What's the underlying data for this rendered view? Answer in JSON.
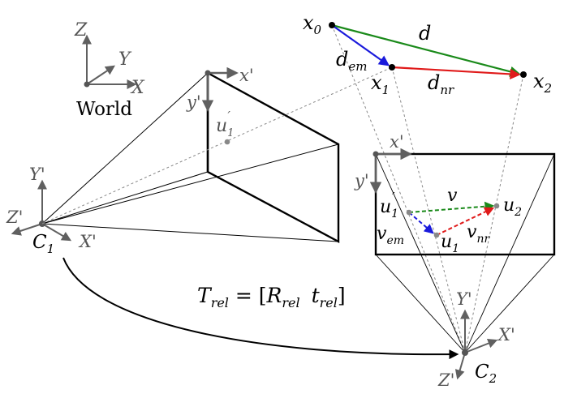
{
  "world_frame": {
    "label": "World",
    "axis_x": "X",
    "axis_y": "Y",
    "axis_z": "Z"
  },
  "camera1": {
    "name": "C",
    "name_sub": "1",
    "axis_x": "X'",
    "axis_y": "Y'",
    "axis_z": "Z'",
    "image_axis_x": "x'",
    "image_axis_y": "y'",
    "point_u1p": "u",
    "point_u1p_sub": "1",
    "point_u1p_prime": "′"
  },
  "camera2": {
    "name": "C",
    "name_sub": "2",
    "axis_x": "X'",
    "axis_y": "Y'",
    "axis_z": "Z'",
    "image_axis_x": "x'",
    "image_axis_y": "y'",
    "point_u1p": "u",
    "point_u1p_sub": "1",
    "point_u1p_prime": "′",
    "point_u1": "u",
    "point_u1_sub": "1",
    "point_u2": "u",
    "point_u2_sub": "2",
    "vec_v": "v",
    "vec_vem": "v",
    "vec_vem_sub": "em",
    "vec_vnr": "v",
    "vec_vnr_sub": "nr"
  },
  "world_points": {
    "x0": "x",
    "x0_sub": "0",
    "x1": "x",
    "x1_sub": "1",
    "x2": "x",
    "x2_sub": "2",
    "d": "d",
    "d_em": "d",
    "d_em_sub": "em",
    "d_nr": "d",
    "d_nr_sub": "nr"
  },
  "transform": {
    "T": "T",
    "T_sub": "rel",
    "eq": " = [",
    "R": "R",
    "R_sub": "rel",
    "t": "t",
    "t_sub": "rel",
    "close": "]"
  },
  "colors": {
    "green": "#1a8a1a",
    "blue": "#1a1adc",
    "red": "#e01a1a",
    "gray": "#606060"
  }
}
